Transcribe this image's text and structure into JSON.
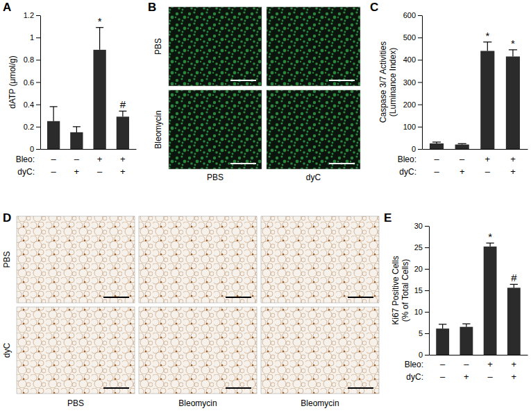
{
  "chart_data": [
    {
      "type": "bar",
      "panel_label": "A",
      "y_label": [
        "dATP (μmol/g)"
      ],
      "categories": [
        null,
        null,
        null,
        null
      ],
      "values": [
        0.25,
        0.15,
        0.89,
        0.29
      ],
      "errors": [
        0.13,
        0.05,
        0.2,
        0.05
      ],
      "significance": [
        null,
        null,
        "*",
        "#"
      ],
      "condition_rows": [
        {
          "label": "Bleo:",
          "marks": [
            "–",
            "–",
            "+",
            "+"
          ]
        },
        {
          "label": "dyC:",
          "marks": [
            "–",
            "+",
            "–",
            "+"
          ]
        }
      ],
      "color": "#2b2b2b",
      "ylim": [
        0,
        1.2
      ],
      "yticks": [
        0,
        0.2,
        0.4,
        0.6,
        0.8,
        1,
        1.2
      ]
    },
    {
      "type": "bar",
      "panel_label": "C",
      "y_label": [
        "Caspase 3/7 Activities",
        "(Luminance Index)"
      ],
      "categories": [
        null,
        null,
        null,
        null
      ],
      "values": [
        25,
        20,
        440,
        415
      ],
      "errors": [
        6,
        4,
        40,
        30
      ],
      "significance": [
        null,
        null,
        "*",
        "*"
      ],
      "condition_rows": [
        {
          "label": "Bleo:",
          "marks": [
            "–",
            "–",
            "+",
            "+"
          ]
        },
        {
          "label": "dyC:",
          "marks": [
            "–",
            "+",
            "–",
            "+"
          ]
        }
      ],
      "color": "#2b2b2b",
      "ylim": [
        0,
        600
      ],
      "yticks": [
        0,
        100,
        200,
        300,
        400,
        500,
        600
      ]
    },
    {
      "type": "bar",
      "panel_label": "E",
      "y_label": [
        "Ki67 Positive Cells",
        "(% of Total Cells)"
      ],
      "categories": [
        null,
        null,
        null,
        null
      ],
      "values": [
        6.1,
        6.5,
        25.2,
        15.6
      ],
      "errors": [
        1.0,
        0.7,
        0.8,
        0.8
      ],
      "significance": [
        null,
        null,
        "*",
        "#"
      ],
      "condition_rows": [
        {
          "label": "Bleo:",
          "marks": [
            "–",
            "–",
            "+",
            "+"
          ]
        },
        {
          "label": "dyC:",
          "marks": [
            "–",
            "+",
            "–",
            "+"
          ]
        }
      ],
      "color": "#2b2b2b",
      "ylim": [
        0,
        30
      ],
      "yticks": [
        0,
        5,
        10,
        15,
        20,
        25,
        30
      ]
    }
  ],
  "image_panels": [
    {
      "panel_label": "B",
      "row_labels": [
        "PBS",
        "Bleomycin"
      ],
      "col_labels": [
        "PBS",
        "dyC"
      ]
    },
    {
      "panel_label": "D",
      "row_labels": [
        "PBS",
        "dyC"
      ],
      "col_labels": [
        "PBS",
        "Bleomycin",
        "Bleomycin"
      ]
    }
  ]
}
